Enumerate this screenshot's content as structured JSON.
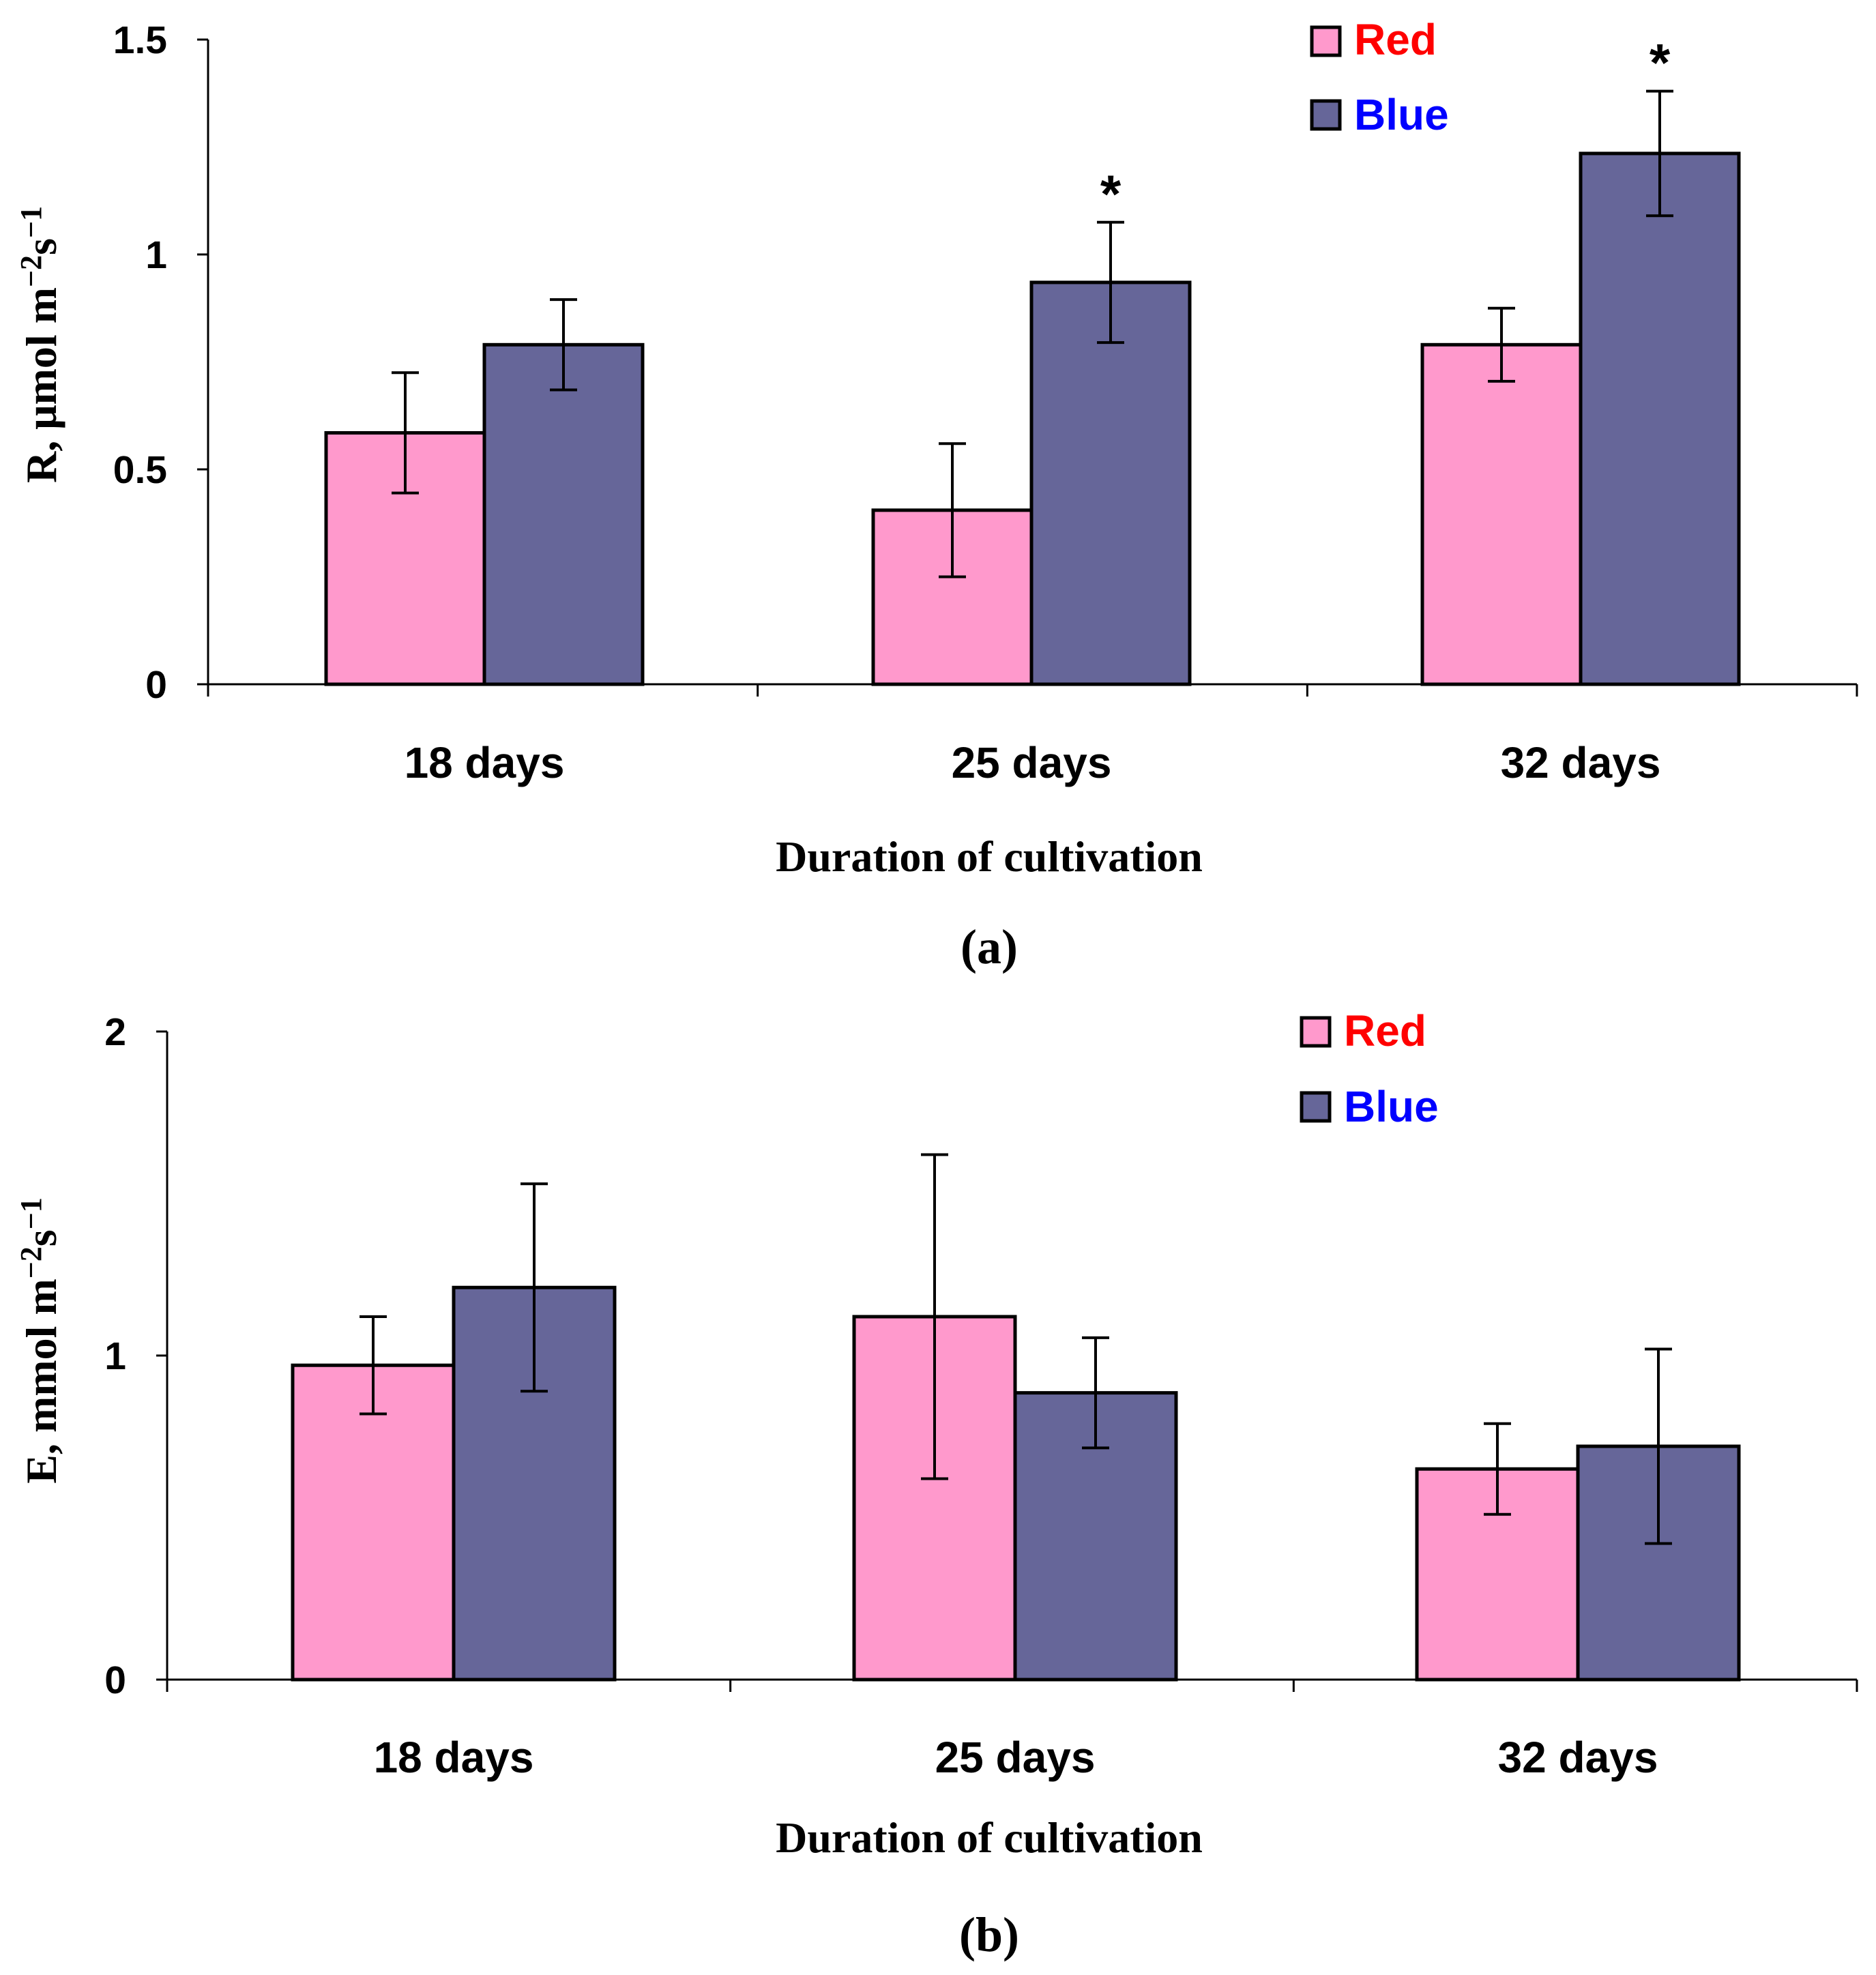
{
  "colors": {
    "red": "#ff99cc",
    "blue": "#666699",
    "red_text": "#ff0000",
    "blue_text": "#0000ff",
    "axis": "#000000"
  },
  "chart_data": [
    {
      "type": "bar",
      "panel_label": "(a)",
      "xlabel": "Duration of cultivation",
      "ylabel_main": "R, μmol m",
      "ylabel_sup1": "−2",
      "ylabel_mid": "s",
      "ylabel_sup2": "−1",
      "ylim": [
        0,
        1.5
      ],
      "yticks": [
        0,
        0.5,
        1,
        1.5
      ],
      "ytick_labels": [
        "0",
        "0.5",
        "1",
        "1.5"
      ],
      "categories": [
        "18 days",
        "25 days",
        "32 days"
      ],
      "series": [
        {
          "name": "Red",
          "color": "#ff99cc",
          "values": [
            0.585,
            0.405,
            0.79
          ],
          "errors": [
            0.14,
            0.155,
            0.085
          ],
          "markers": [
            "",
            "",
            ""
          ]
        },
        {
          "name": "Blue",
          "color": "#666699",
          "values": [
            0.79,
            0.935,
            1.235
          ],
          "errors": [
            0.105,
            0.14,
            0.145
          ],
          "markers": [
            "",
            "*",
            "*"
          ]
        }
      ],
      "legend_position": "top-right"
    },
    {
      "type": "bar",
      "panel_label": "(b)",
      "xlabel": "Duration of cultivation",
      "ylabel_main": "E, mmol m",
      "ylabel_sup1": "−2",
      "ylabel_mid": "s",
      "ylabel_sup2": "−1",
      "ylim": [
        0,
        2
      ],
      "yticks": [
        0,
        1,
        2
      ],
      "ytick_labels": [
        "0",
        "1",
        "2"
      ],
      "categories": [
        "18 days",
        "25 days",
        "32 days"
      ],
      "series": [
        {
          "name": "Red",
          "color": "#ff99cc",
          "values": [
            0.97,
            1.12,
            0.65
          ],
          "errors": [
            0.15,
            0.5,
            0.14
          ],
          "markers": [
            "",
            "",
            ""
          ]
        },
        {
          "name": "Blue",
          "color": "#666699",
          "values": [
            1.21,
            0.885,
            0.72
          ],
          "errors": [
            0.32,
            0.17,
            0.3
          ],
          "markers": [
            "",
            "",
            ""
          ]
        }
      ],
      "legend_position": "top-right"
    }
  ]
}
